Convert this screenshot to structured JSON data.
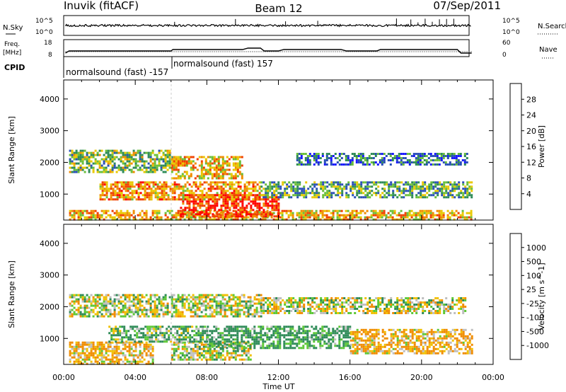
{
  "header": {
    "station": "Inuvik (fitACF)",
    "beam": "Beam 12",
    "date": "07/Sep/2011"
  },
  "status_panel": {
    "nsky_label": "N.Sky",
    "nsearch_label": "N.Search",
    "freq_label_1": "Freq.",
    "freq_label_2": "[MHz]",
    "nave_label": "Nave",
    "cpid_label": "CPID",
    "nsky_ticks": [
      "10^5",
      "10^0"
    ],
    "nsearch_ticks": [
      "10^5",
      "10^0"
    ],
    "freq_ticks": [
      "18",
      "8"
    ],
    "nave_ticks": [
      "60",
      "0"
    ],
    "cpid_1": "normalsound (fast) -157",
    "cpid_2": "normalsound (fast) 157"
  },
  "x_axis": {
    "title": "Time UT",
    "ticks": [
      "00:00",
      "04:00",
      "08:00",
      "12:00",
      "16:00",
      "20:00",
      "00:00"
    ]
  },
  "chart_data": [
    {
      "type": "heatmap",
      "panel": "power",
      "ylabel": "Slant Range [km]",
      "y_ticks": [
        "4000",
        "3000",
        "2000",
        "1000"
      ],
      "xlim_hours": [
        0,
        24
      ],
      "ylim_km": [
        180,
        4600
      ],
      "colorbar_label": "Power [dB]",
      "colorbar_ticks": [
        "28",
        "24",
        "20",
        "16",
        "12",
        "8",
        "4"
      ],
      "colorbar_colors": [
        "#1a1aff",
        "#2a4fb8",
        "#2e8b57",
        "#6abf3a",
        "#e8c800",
        "#f08c00",
        "#f04000",
        "#ff0000"
      ],
      "bands": [
        {
          "t0": 0.3,
          "t1": 22.8,
          "r0": 200,
          "r1": 500,
          "intensity": 20
        },
        {
          "t0": 6.5,
          "t1": 12.0,
          "r0": 300,
          "r1": 1000,
          "intensity": 28
        },
        {
          "t0": 2.0,
          "t1": 11.0,
          "r0": 800,
          "r1": 1400,
          "intensity": 22
        },
        {
          "t0": 11.0,
          "t1": 22.8,
          "r0": 900,
          "r1": 1400,
          "intensity": 12
        },
        {
          "t0": 0.3,
          "t1": 6.0,
          "r0": 1700,
          "r1": 2400,
          "intensity": 14
        },
        {
          "t0": 6.0,
          "t1": 10.0,
          "r0": 1500,
          "r1": 2200,
          "intensity": 20
        },
        {
          "t0": 13.0,
          "t1": 22.5,
          "r0": 1900,
          "r1": 2300,
          "intensity": 8
        }
      ]
    },
    {
      "type": "heatmap",
      "panel": "velocity",
      "ylabel": "Slant Range [km]",
      "y_ticks": [
        "4000",
        "3000",
        "2000",
        "1000"
      ],
      "xlim_hours": [
        0,
        24
      ],
      "ylim_km": [
        180,
        4600
      ],
      "colorbar_label": "Velocity [m s^-1]",
      "colorbar_ticks": [
        "1000",
        "500",
        "100",
        "25",
        "-25",
        "-100",
        "-500",
        "-1000"
      ],
      "colorbar_colors": [
        "#1a3fd0",
        "#2e6e9c",
        "#2e8b57",
        "#5cc835",
        "#bebebe",
        "#f0c000",
        "#f08c00",
        "#f05000",
        "#ff0000"
      ],
      "bands": [
        {
          "t0": 0.3,
          "t1": 5.0,
          "r0": 200,
          "r1": 900,
          "intensity": -100
        },
        {
          "t0": 6.0,
          "t1": 10.5,
          "r0": 300,
          "r1": 900,
          "intensity": 0
        },
        {
          "t0": 2.5,
          "t1": 8.0,
          "r0": 900,
          "r1": 1400,
          "intensity": 100
        },
        {
          "t0": 8.0,
          "t1": 16.0,
          "r0": 700,
          "r1": 1400,
          "intensity": 150
        },
        {
          "t0": 16.0,
          "t1": 22.8,
          "r0": 500,
          "r1": 1300,
          "intensity": -100
        },
        {
          "t0": 0.3,
          "t1": 11.0,
          "r0": 1700,
          "r1": 2400,
          "intensity": 0
        },
        {
          "t0": 11.0,
          "t1": 22.5,
          "r0": 1800,
          "r1": 2300,
          "intensity": 0
        }
      ]
    }
  ]
}
